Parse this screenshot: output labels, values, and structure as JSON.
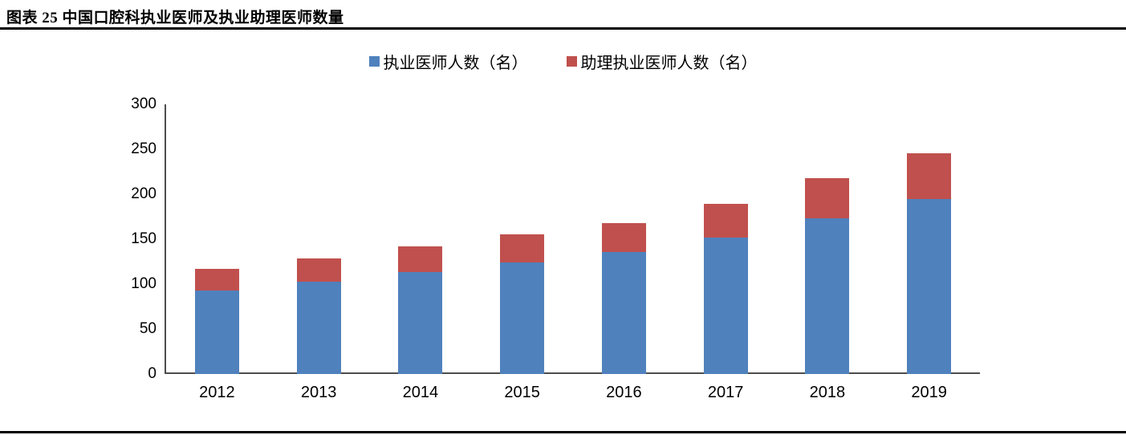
{
  "header": {
    "title": "图表 25 中国口腔科执业医师及执业助理医师数量"
  },
  "chart_data": {
    "type": "bar",
    "stacked": true,
    "title": "中国口腔科执业医师及执业助理医师数量",
    "categories": [
      "2012",
      "2013",
      "2014",
      "2015",
      "2016",
      "2017",
      "2018",
      "2019"
    ],
    "series": [
      {
        "name": "执业医师人数（名）",
        "color": "#4F81BD",
        "values": [
          93,
          103,
          113,
          124,
          136,
          152,
          173,
          195
        ]
      },
      {
        "name": "助理执业医师人数（名）",
        "color": "#C0504D",
        "values": [
          24,
          26,
          29,
          31,
          32,
          37,
          45,
          51
        ]
      }
    ],
    "xlabel": "",
    "ylabel": "",
    "ylim": [
      0,
      300
    ],
    "yticks": [
      0,
      50,
      100,
      150,
      200,
      250,
      300
    ],
    "legend_position": "top",
    "grid": false,
    "axis_color": "#4d4d4d"
  }
}
